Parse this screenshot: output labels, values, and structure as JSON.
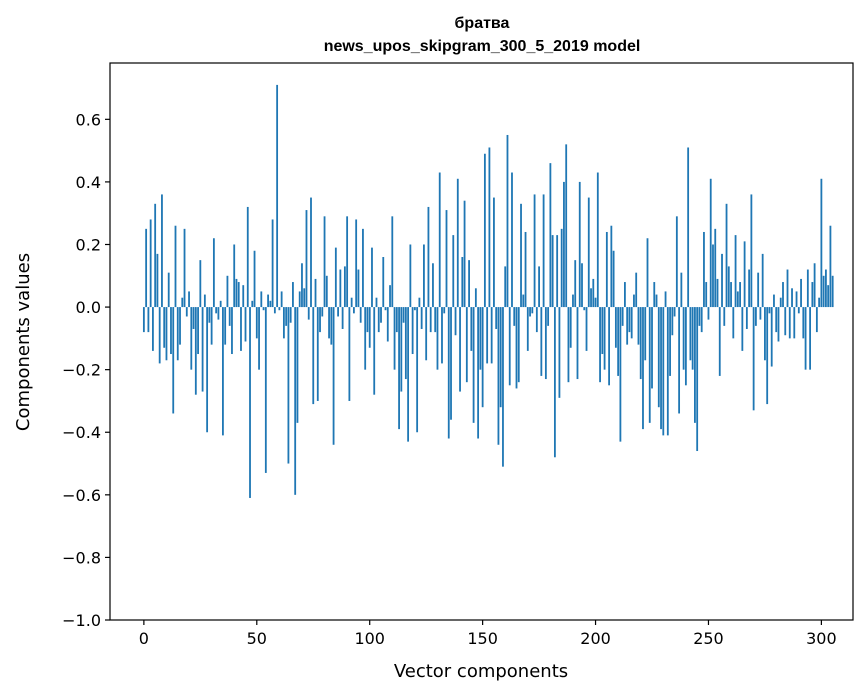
{
  "chart_data": {
    "type": "bar",
    "title": "братва",
    "subtitle": "news_upos_skipgram_300_5_2019 model",
    "xlabel": "Vector components",
    "ylabel": "Components values",
    "xlim": [
      -15,
      314
    ],
    "ylim": [
      -1.0,
      0.78
    ],
    "xticks": [
      0,
      50,
      100,
      150,
      200,
      250,
      300
    ],
    "yticks": [
      -1.0,
      -0.8,
      -0.6,
      -0.4,
      -0.2,
      0.0,
      0.2,
      0.4,
      0.6
    ],
    "ytick_labels": [
      "−1.0",
      "−0.8",
      "−0.6",
      "−0.4",
      "−0.2",
      "0.0",
      "0.2",
      "0.4",
      "0.6"
    ],
    "bar_color": "#1f77b4",
    "grid": false,
    "values": [
      -0.08,
      0.25,
      -0.08,
      0.28,
      -0.14,
      0.33,
      0.17,
      -0.18,
      0.36,
      -0.13,
      -0.17,
      0.11,
      -0.15,
      -0.34,
      0.26,
      -0.17,
      -0.12,
      0.03,
      0.25,
      -0.03,
      0.05,
      -0.2,
      -0.07,
      -0.28,
      -0.15,
      0.15,
      -0.27,
      0.04,
      -0.4,
      -0.05,
      -0.12,
      0.22,
      -0.02,
      -0.04,
      0.02,
      -0.41,
      -0.12,
      0.1,
      -0.06,
      -0.15,
      0.2,
      0.09,
      0.08,
      -0.14,
      0.07,
      -0.11,
      0.32,
      -0.61,
      0.02,
      0.18,
      -0.1,
      -0.2,
      0.05,
      -0.01,
      -0.53,
      0.04,
      0.02,
      0.28,
      -0.02,
      0.71,
      -0.01,
      0.05,
      -0.1,
      -0.06,
      -0.5,
      -0.05,
      0.08,
      -0.6,
      -0.37,
      0.05,
      0.14,
      0.06,
      0.31,
      -0.04,
      0.35,
      -0.31,
      0.09,
      -0.3,
      -0.08,
      -0.03,
      0.29,
      0.1,
      -0.1,
      -0.12,
      -0.44,
      0.19,
      -0.03,
      0.12,
      -0.07,
      0.13,
      0.29,
      -0.3,
      0.03,
      -0.02,
      0.28,
      0.12,
      -0.05,
      0.25,
      -0.2,
      -0.08,
      -0.13,
      0.19,
      -0.28,
      0.03,
      -0.08,
      -0.05,
      0.16,
      -0.01,
      -0.11,
      0.07,
      0.29,
      -0.2,
      -0.08,
      -0.39,
      -0.27,
      -0.05,
      -0.23,
      -0.43,
      0.2,
      -0.15,
      -0.01,
      -0.4,
      0.03,
      -0.07,
      0.2,
      -0.17,
      0.32,
      -0.08,
      0.14,
      -0.08,
      -0.2,
      0.43,
      -0.18,
      -0.02,
      0.31,
      -0.42,
      -0.36,
      0.23,
      -0.09,
      0.41,
      -0.27,
      0.16,
      0.34,
      -0.24,
      0.15,
      -0.14,
      -0.37,
      0.06,
      -0.42,
      -0.2,
      -0.32,
      0.49,
      -0.18,
      0.51,
      -0.18,
      0.35,
      -0.07,
      -0.44,
      -0.32,
      -0.51,
      0.13,
      0.55,
      -0.25,
      0.43,
      -0.06,
      -0.26,
      -0.24,
      0.33,
      0.04,
      0.24,
      -0.14,
      -0.03,
      -0.02,
      0.36,
      -0.08,
      0.13,
      -0.22,
      0.36,
      -0.23,
      -0.06,
      0.46,
      0.23,
      -0.48,
      0.23,
      -0.29,
      0.25,
      0.4,
      0.52,
      -0.24,
      -0.13,
      0.04,
      0.15,
      -0.23,
      0.4,
      0.14,
      -0.01,
      -0.14,
      0.35,
      0.06,
      0.09,
      0.03,
      0.43,
      -0.24,
      -0.15,
      -0.2,
      0.24,
      -0.25,
      0.26,
      0.18,
      -0.13,
      -0.22,
      -0.43,
      -0.06,
      0.08,
      -0.12,
      -0.08,
      -0.1,
      0.04,
      0.11,
      -0.12,
      -0.23,
      -0.39,
      -0.17,
      0.22,
      -0.37,
      -0.26,
      0.08,
      0.04,
      -0.32,
      -0.39,
      -0.41,
      0.05,
      -0.41,
      -0.22,
      -0.09,
      -0.03,
      0.29,
      -0.34,
      0.11,
      -0.2,
      -0.25,
      0.51,
      -0.17,
      -0.2,
      -0.37,
      -0.46,
      -0.06,
      -0.08,
      0.24,
      0.08,
      -0.04,
      0.41,
      0.2,
      0.25,
      0.09,
      -0.22,
      0.17,
      -0.06,
      0.33,
      0.13,
      0.08,
      -0.1,
      0.23,
      0.05,
      0.08,
      -0.14,
      0.21,
      -0.07,
      0.12,
      0.36,
      -0.33,
      -0.06,
      0.11,
      -0.04,
      0.17,
      -0.17,
      -0.31,
      -0.02,
      -0.19,
      0.04,
      -0.08,
      -0.11,
      0.03,
      0.08,
      -0.09,
      0.12,
      -0.1,
      0.06,
      -0.1,
      0.05,
      -0.02,
      0.09,
      -0.1,
      -0.2,
      0.12,
      -0.2,
      0.08,
      0.14,
      -0.08,
      0.03,
      0.41,
      0.1,
      0.12,
      0.07,
      0.26,
      0.1
    ]
  }
}
